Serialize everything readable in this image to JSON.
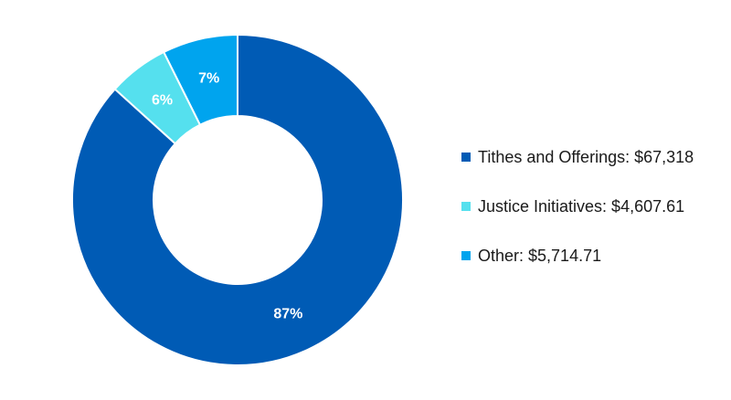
{
  "chart_data": {
    "type": "pie",
    "donut": true,
    "slices": [
      {
        "name": "Tithes and Offerings",
        "value_text": "$67,318",
        "value": 67318,
        "percent_label": "87%",
        "color": "#005BB5"
      },
      {
        "name": "Justice Initiatives",
        "value_text": "$4,607.61",
        "value": 4607.61,
        "percent_label": "6%",
        "color": "#55E0EE"
      },
      {
        "name": "Other",
        "value_text": "$5,714.71",
        "value": 5714.71,
        "percent_label": "7%",
        "color": "#00A4EE"
      }
    ],
    "legend": {
      "position": "right",
      "items": [
        "Tithes and Offerings: $67,318",
        "Justice Initiatives: $4,607.61",
        "Other: $5,714.71"
      ]
    }
  }
}
